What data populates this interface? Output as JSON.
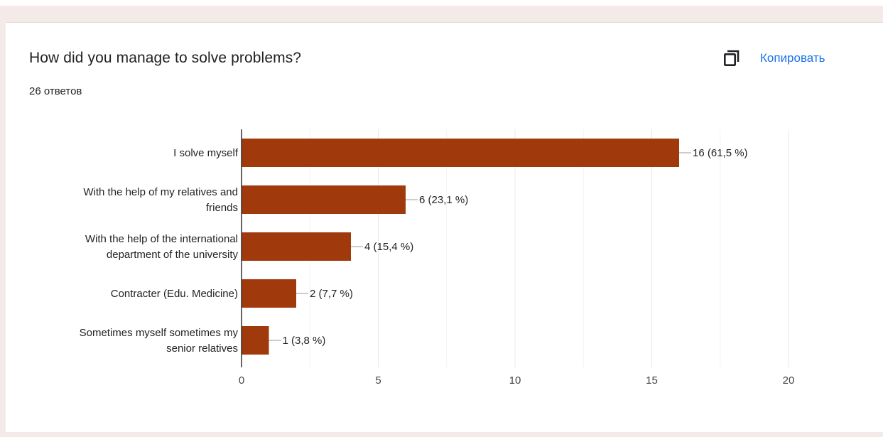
{
  "question": {
    "title": "How did you manage to solve problems?",
    "responses": "26 ответов"
  },
  "toolbar": {
    "copy_label": "Копировать",
    "copy_icon": "copy-icon"
  },
  "colors": {
    "bar": "#a0390c",
    "accent": "#1a73e8",
    "grid": "#e8e8e8",
    "axis": "#333333"
  },
  "chart_data": {
    "type": "bar",
    "orientation": "horizontal",
    "categories": [
      [
        "I solve myself"
      ],
      [
        "With the help of my relatives and",
        "friends"
      ],
      [
        "With the help of the international",
        "department of the university"
      ],
      [
        "Contracter (Edu. Medicine)"
      ],
      [
        "Sometimes myself sometimes my",
        "senior relatives"
      ]
    ],
    "values": [
      16,
      6,
      4,
      2,
      1
    ],
    "data_labels": [
      "16 (61,5 %)",
      "6 (23,1 %)",
      "4 (15,4 %)",
      "2 (7,7 %)",
      "1 (3,8 %)"
    ],
    "xlim": [
      0,
      20
    ],
    "xticks": [
      0,
      5,
      10,
      15,
      20
    ],
    "grid": true
  }
}
